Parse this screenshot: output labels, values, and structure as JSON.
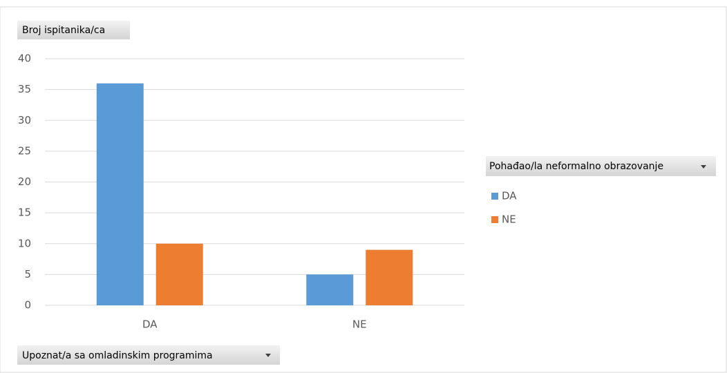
{
  "chart_data": {
    "type": "bar",
    "value_field": "Broj ispitanika/ca",
    "axis_field": "Upoznat/a sa omladinskim programima",
    "legend_title": "Pohađao/la neformalno obrazovanje",
    "categories": [
      "DA",
      "NE"
    ],
    "series": [
      {
        "name": "DA",
        "color": "#5b9bd5",
        "values": [
          36,
          5
        ]
      },
      {
        "name": "NE",
        "color": "#ed7d31",
        "values": [
          10,
          9
        ]
      }
    ],
    "ylim": [
      0,
      40
    ],
    "yticks": [
      0,
      5,
      10,
      15,
      20,
      25,
      30,
      35,
      40
    ],
    "grid": true,
    "legend": "right"
  }
}
